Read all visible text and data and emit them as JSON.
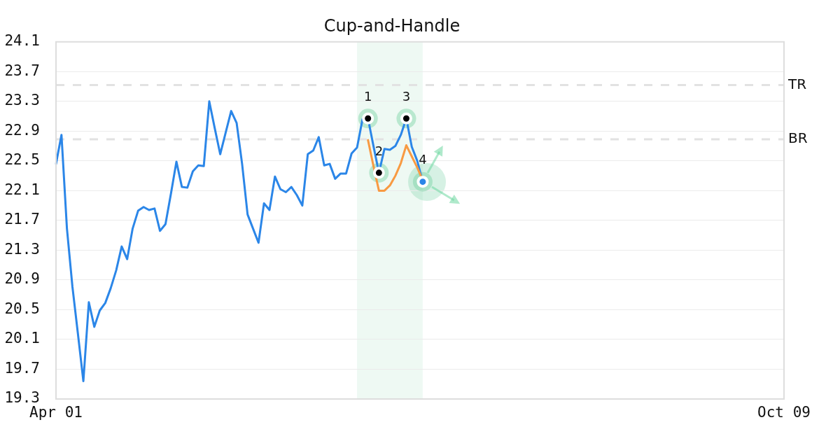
{
  "chart_data": {
    "type": "line",
    "title": "Cup-and-Handle",
    "categories": [
      "Apr 01",
      null,
      null,
      null,
      null,
      null,
      null,
      null,
      null,
      null,
      null,
      null,
      null,
      null,
      null,
      null,
      null,
      null,
      null,
      null,
      null,
      null,
      null,
      null,
      null,
      null,
      null,
      null,
      null,
      null,
      null,
      null,
      null,
      null,
      null,
      null,
      null,
      null,
      null,
      null,
      null,
      null,
      null,
      null,
      null,
      null,
      null,
      null,
      null,
      null,
      null,
      null,
      null,
      null,
      null,
      null,
      null,
      null,
      null,
      null,
      null,
      null,
      null,
      null,
      null,
      null,
      null,
      null,
      null,
      null,
      null,
      null,
      null,
      null,
      null,
      null,
      null,
      null,
      null,
      null,
      null,
      null,
      null,
      null,
      null,
      null,
      null,
      null,
      null,
      null,
      null,
      null,
      null,
      null,
      null,
      null,
      null,
      null,
      null,
      null,
      null,
      null,
      null,
      null,
      null,
      null,
      null,
      null,
      null,
      null,
      null,
      null,
      null,
      null,
      null,
      null,
      null,
      null,
      null,
      null,
      null,
      null,
      null,
      null,
      null,
      null,
      null,
      null,
      null,
      null,
      null,
      null,
      null,
      "Oct 09"
    ],
    "series": [
      {
        "color": "#2b86e8",
        "values": [
          22.46,
          22.85,
          21.59,
          20.81,
          20.18,
          19.54,
          20.6,
          20.27,
          20.49,
          20.59,
          20.79,
          21.03,
          21.35,
          21.18,
          21.59,
          21.83,
          21.88,
          21.84,
          21.86,
          21.56,
          21.65,
          22.06,
          22.49,
          22.15,
          22.14,
          22.36,
          22.44,
          22.43,
          23.3,
          22.94,
          22.59,
          22.88,
          23.17,
          23.01,
          22.46,
          21.78,
          21.59,
          21.4,
          21.93,
          21.84,
          22.29,
          22.12,
          22.08,
          22.15,
          22.04,
          21.9,
          22.59,
          22.64,
          22.82,
          22.44,
          22.46,
          22.26,
          22.33,
          22.33,
          22.6,
          22.68,
          23.06,
          23.07,
          22.7,
          22.34,
          22.66,
          22.65,
          22.7,
          22.85,
          23.07,
          22.69,
          22.5,
          22.22,
          null,
          null,
          null,
          null,
          null,
          null,
          null,
          null,
          null,
          null,
          null,
          null,
          null,
          null,
          null,
          null,
          null,
          null,
          null,
          null,
          null,
          null,
          null,
          null,
          null,
          null,
          null,
          null,
          null,
          null,
          null,
          null,
          null,
          null,
          null,
          null,
          null,
          null,
          null,
          null,
          null,
          null,
          null,
          null,
          null,
          null,
          null,
          null,
          null,
          null,
          null,
          null,
          null,
          null,
          null,
          null,
          null,
          null,
          null,
          null,
          null,
          null,
          null,
          null,
          null,
          null
        ]
      },
      {
        "color": "#f89a42",
        "values": [
          null,
          null,
          null,
          null,
          null,
          null,
          null,
          null,
          null,
          null,
          null,
          null,
          null,
          null,
          null,
          null,
          null,
          null,
          null,
          null,
          null,
          null,
          null,
          null,
          null,
          null,
          null,
          null,
          null,
          null,
          null,
          null,
          null,
          null,
          null,
          null,
          null,
          null,
          null,
          null,
          null,
          null,
          null,
          null,
          null,
          null,
          null,
          null,
          null,
          null,
          null,
          null,
          null,
          null,
          null,
          null,
          null,
          22.78,
          22.43,
          22.1,
          22.1,
          22.17,
          22.3,
          22.47,
          22.71,
          22.56,
          22.41,
          22.24,
          null,
          null,
          null,
          null,
          null,
          null,
          null,
          null,
          null,
          null,
          null,
          null,
          null,
          null,
          null,
          null,
          null,
          null,
          null,
          null,
          null,
          null,
          null,
          null,
          null,
          null,
          null,
          null,
          null,
          null,
          null,
          null,
          null,
          null,
          null,
          null,
          null,
          null,
          null,
          null,
          null,
          null,
          null,
          null,
          null,
          null,
          null,
          null,
          null,
          null,
          null,
          null,
          null,
          null,
          null,
          null,
          null,
          null,
          null,
          null,
          null,
          null,
          null,
          null,
          null,
          null
        ]
      },
      {
        "type": "scatter",
        "marker": "circle",
        "values": [
          null,
          null,
          null,
          null,
          null,
          null,
          null,
          null,
          null,
          null,
          null,
          null,
          null,
          null,
          null,
          null,
          null,
          null,
          null,
          null,
          null,
          null,
          null,
          null,
          null,
          null,
          null,
          null,
          null,
          null,
          null,
          null,
          null,
          null,
          null,
          null,
          null,
          null,
          null,
          null,
          null,
          null,
          null,
          null,
          null,
          null,
          null,
          null,
          null,
          null,
          null,
          null,
          null,
          null,
          null,
          null,
          null,
          23.07,
          null,
          22.34,
          null,
          null,
          null,
          null,
          23.07,
          null,
          null,
          22.22,
          null,
          null,
          null,
          null,
          null,
          null,
          null,
          null,
          null,
          null,
          null,
          null,
          null,
          null,
          null,
          null,
          null,
          null,
          null,
          null,
          null,
          null,
          null,
          null,
          null,
          null,
          null,
          null,
          null,
          null,
          null,
          null,
          null,
          null,
          null,
          null,
          null,
          null,
          null,
          null,
          null,
          null,
          null,
          null,
          null,
          null,
          null,
          null,
          null,
          null,
          null,
          null,
          null,
          null,
          null,
          null,
          null,
          null,
          null,
          null,
          null,
          null,
          null,
          null,
          null,
          null
        ],
        "colors": [
          null,
          null,
          null,
          null,
          null,
          null,
          null,
          null,
          null,
          null,
          null,
          null,
          null,
          null,
          null,
          null,
          null,
          null,
          null,
          null,
          null,
          null,
          null,
          null,
          null,
          null,
          null,
          null,
          null,
          null,
          null,
          null,
          null,
          null,
          null,
          null,
          null,
          null,
          null,
          null,
          null,
          null,
          null,
          null,
          null,
          null,
          null,
          null,
          null,
          null,
          null,
          null,
          null,
          null,
          null,
          null,
          null,
          "#000000",
          null,
          "#000000",
          null,
          null,
          null,
          null,
          "#000000",
          null,
          null,
          "#2b86e8",
          null,
          null,
          null,
          null,
          null,
          null,
          null,
          null,
          null,
          null,
          null,
          null,
          null,
          null,
          null,
          null,
          null,
          null,
          null,
          null,
          null,
          null,
          null,
          null,
          null,
          null,
          null,
          null,
          null,
          null,
          null,
          null,
          null,
          null,
          null,
          null,
          null,
          null,
          null,
          null,
          null,
          null,
          null,
          null,
          null,
          null,
          null,
          null,
          null,
          null,
          null,
          null,
          null,
          null,
          null,
          null,
          null,
          null,
          null,
          null,
          null,
          null,
          null,
          null,
          null,
          null
        ]
      }
    ],
    "annotations": [
      {
        "text": "1",
        "y": 23.07
      },
      {
        "text": "2",
        "y": 22.34
      },
      {
        "text": "3",
        "y": 23.07
      },
      {
        "text": "4",
        "y": 22.22
      }
    ],
    "ylim": [
      19.3,
      24.1
    ],
    "yticks": [
      19.3,
      19.7,
      20.1,
      20.5,
      20.9,
      21.3,
      21.7,
      22.1,
      22.5,
      22.9,
      23.3,
      23.7,
      24.1
    ],
    "grid": "y",
    "ref_lines": [
      {
        "axis": "y",
        "value": 23.52,
        "label": "TR",
        "color": "#e2e2e2",
        "line_style": "dashed"
      },
      {
        "axis": "y",
        "value": 22.79,
        "label": "BR",
        "color": "#e2e2e2",
        "line_style": "dashed"
      }
    ]
  }
}
